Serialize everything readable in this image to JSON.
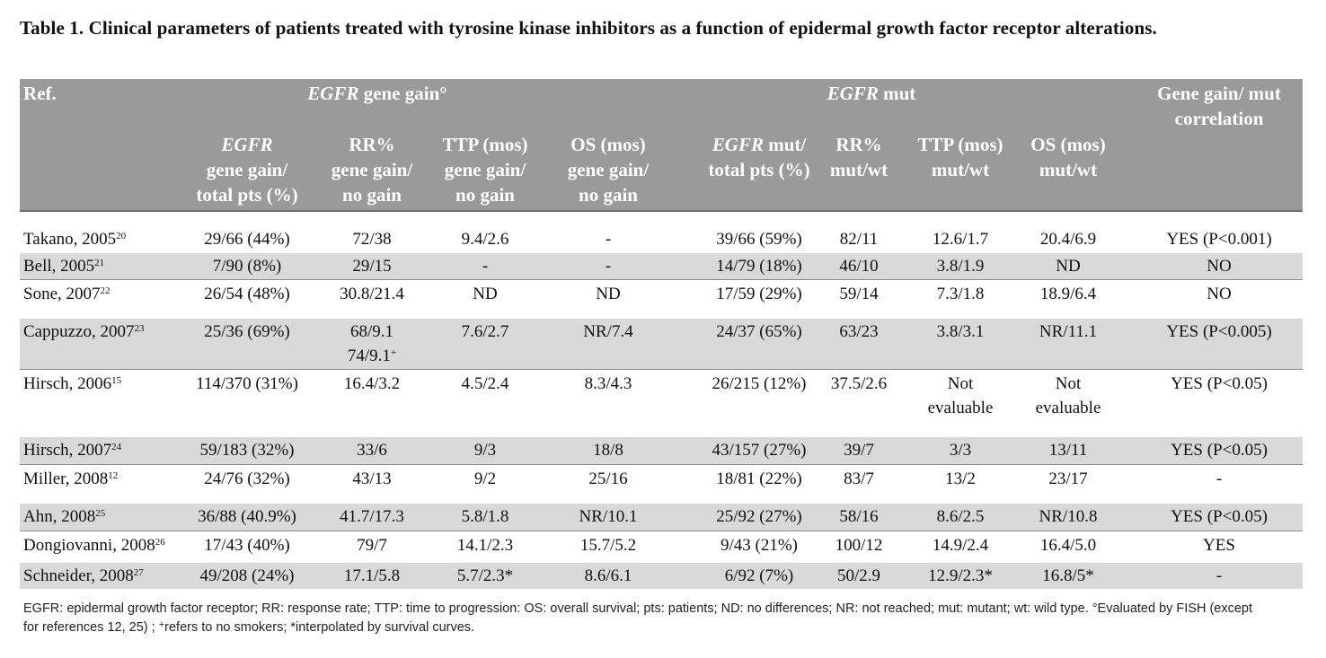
{
  "caption": "Table 1. Clinical parameters of patients treated with  tyrosine kinase inhibitors as a function of epidermal growth factor receptor alterations.",
  "header": {
    "ref": "Ref.",
    "group_gain_italic": "EGFR",
    "group_gain_rest": " gene gain°",
    "group_mut_italic": "EGFR",
    "group_mut_rest": " mut",
    "correlation_line1": "Gene gain/ mut",
    "correlation_line2": "correlation",
    "gain_col1_italic": "EGFR",
    "gain_col1_line2": "gene gain/",
    "gain_col1_line3": "total pts (%)",
    "gain_col2_line1": "RR%",
    "gain_col2_line2": "gene gain/",
    "gain_col2_line3": "no gain",
    "gain_col3_line1": "TTP (mos)",
    "gain_col3_line2": "gene gain/",
    "gain_col3_line3": "no gain",
    "gain_col4_line1": "OS (mos)",
    "gain_col4_line2": "gene gain/",
    "gain_col4_line3": "no gain",
    "mut_col1_italic": "EGFR",
    "mut_col1_rest": " mut/",
    "mut_col1_line2": "total pts (%)",
    "mut_col2_line1": "RR%",
    "mut_col2_line2": "mut/wt",
    "mut_col3_line1": "TTP (mos)",
    "mut_col3_line2": "mut/wt",
    "mut_col4_line1": "OS (mos)",
    "mut_col4_line2": "mut/wt"
  },
  "rows": [
    {
      "ref": "Takano, 2005",
      "sup": "20",
      "gain_total": "29/66 (44%)",
      "rr_gain": "72/38",
      "rr_gain_extra": "",
      "rr_gain_extra_sup": "",
      "ttp_gain": "9.4/2.6",
      "os_gain": "-",
      "mut_total": "39/66 (59%)",
      "rr_mut": "82/11",
      "ttp_mut": "12.6/1.7",
      "ttp_mut_2": "",
      "os_mut": "20.4/6.9",
      "os_mut_2": "",
      "corr": "YES (P<0.001)"
    },
    {
      "ref": "Bell, 2005",
      "sup": "21",
      "gain_total": "7/90  (8%)",
      "rr_gain": "29/15",
      "rr_gain_extra": "",
      "rr_gain_extra_sup": "",
      "ttp_gain": "-",
      "os_gain": "-",
      "mut_total": "14/79 (18%)",
      "rr_mut": "46/10",
      "ttp_mut": "3.8/1.9",
      "ttp_mut_2": "",
      "os_mut": "ND",
      "os_mut_2": "",
      "corr": "NO"
    },
    {
      "ref": "Sone, 2007",
      "sup": "22",
      "gain_total": "26/54 (48%)",
      "rr_gain": "30.8/21.4",
      "rr_gain_extra": "",
      "rr_gain_extra_sup": "",
      "ttp_gain": "ND",
      "os_gain": "ND",
      "mut_total": "17/59 (29%)",
      "rr_mut": "59/14",
      "ttp_mut": "7.3/1.8",
      "ttp_mut_2": "",
      "os_mut": "18.9/6.4",
      "os_mut_2": "",
      "corr": "NO"
    },
    {
      "ref": "Cappuzzo, 2007",
      "sup": "23",
      "gain_total": "25/36 (69%)",
      "rr_gain": "68/9.1",
      "rr_gain_extra": "74/9.1",
      "rr_gain_extra_sup": "+",
      "ttp_gain": "7.6/2.7",
      "os_gain": "NR/7.4",
      "mut_total": "24/37 (65%)",
      "rr_mut": "63/23",
      "ttp_mut": "3.8/3.1",
      "ttp_mut_2": "",
      "os_mut": "NR/11.1",
      "os_mut_2": "",
      "corr": "YES (P<0.005)"
    },
    {
      "ref": "Hirsch, 2006",
      "sup": "15",
      "gain_total": "114/370 (31%)",
      "rr_gain": "16.4/3.2",
      "rr_gain_extra": "",
      "rr_gain_extra_sup": "",
      "ttp_gain": "4.5/2.4",
      "os_gain": "8.3/4.3",
      "mut_total": "26/215 (12%)",
      "rr_mut": "37.5/2.6",
      "ttp_mut": "Not",
      "ttp_mut_2": "evaluable",
      "os_mut": "Not",
      "os_mut_2": "evaluable",
      "corr": "YES (P<0.05)"
    },
    {
      "ref": "Hirsch, 2007",
      "sup": "24",
      "gain_total": "59/183 (32%)",
      "rr_gain": "33/6",
      "rr_gain_extra": "",
      "rr_gain_extra_sup": "",
      "ttp_gain": "9/3",
      "os_gain": "18/8",
      "mut_total": "43/157 (27%)",
      "rr_mut": "39/7",
      "ttp_mut": "3/3",
      "ttp_mut_2": "",
      "os_mut": "13/11",
      "os_mut_2": "",
      "corr": "YES (P<0.05)"
    },
    {
      "ref": "Miller, 2008",
      "sup": "12",
      "gain_total": "24/76 (32%)",
      "rr_gain": "43/13",
      "rr_gain_extra": "",
      "rr_gain_extra_sup": "",
      "ttp_gain": "9/2",
      "os_gain": "25/16",
      "mut_total": "18/81 (22%)",
      "rr_mut": "83/7",
      "ttp_mut": "13/2",
      "ttp_mut_2": "",
      "os_mut": "23/17",
      "os_mut_2": "",
      "corr": "-"
    },
    {
      "ref": "Ahn, 2008",
      "sup": "25",
      "gain_total": "36/88 (40.9%)",
      "rr_gain": "41.7/17.3",
      "rr_gain_extra": "",
      "rr_gain_extra_sup": "",
      "ttp_gain": "5.8/1.8",
      "os_gain": "NR/10.1",
      "mut_total": "25/92 (27%)",
      "rr_mut": "58/16",
      "ttp_mut": "8.6/2.5",
      "ttp_mut_2": "",
      "os_mut": "NR/10.8",
      "os_mut_2": "",
      "corr": "YES (P<0.05)"
    },
    {
      "ref": "Dongiovanni, 2008",
      "sup": "26",
      "gain_total": "17/43 (40%)",
      "rr_gain": "79/7",
      "rr_gain_extra": "",
      "rr_gain_extra_sup": "",
      "ttp_gain": "14.1/2.3",
      "os_gain": "15.7/5.2",
      "mut_total": "9/43 (21%)",
      "rr_mut": "100/12",
      "ttp_mut": "14.9/2.4",
      "ttp_mut_2": "",
      "os_mut": "16.4/5.0",
      "os_mut_2": "",
      "corr": "YES"
    },
    {
      "ref": "Schneider, 2008",
      "sup": "27",
      "gain_total": "49/208 (24%)",
      "rr_gain": "17.1/5.8",
      "rr_gain_extra": "",
      "rr_gain_extra_sup": "",
      "ttp_gain": "5.7/2.3*",
      "os_gain": "8.6/6.1",
      "mut_total": "6/92  (7%)",
      "rr_mut": "50/2.9",
      "ttp_mut": "12.9/2.3*",
      "ttp_mut_2": "",
      "os_mut": "16.8/5*",
      "os_mut_2": "",
      "corr": "-"
    }
  ],
  "footnote_line1": "EGFR: epidermal growth factor receptor; RR: response rate; TTP: time to progression: OS: overall survival; pts: patients; ND: no differences; NR: not reached; mut: mutant; wt: wild type. °Evaluated by FISH (except",
  "footnote_line2_a": "for references 12, 25) ; ",
  "footnote_line2_sup": "+",
  "footnote_line2_b": "refers to no smokers; *interpolated by survival curves."
}
